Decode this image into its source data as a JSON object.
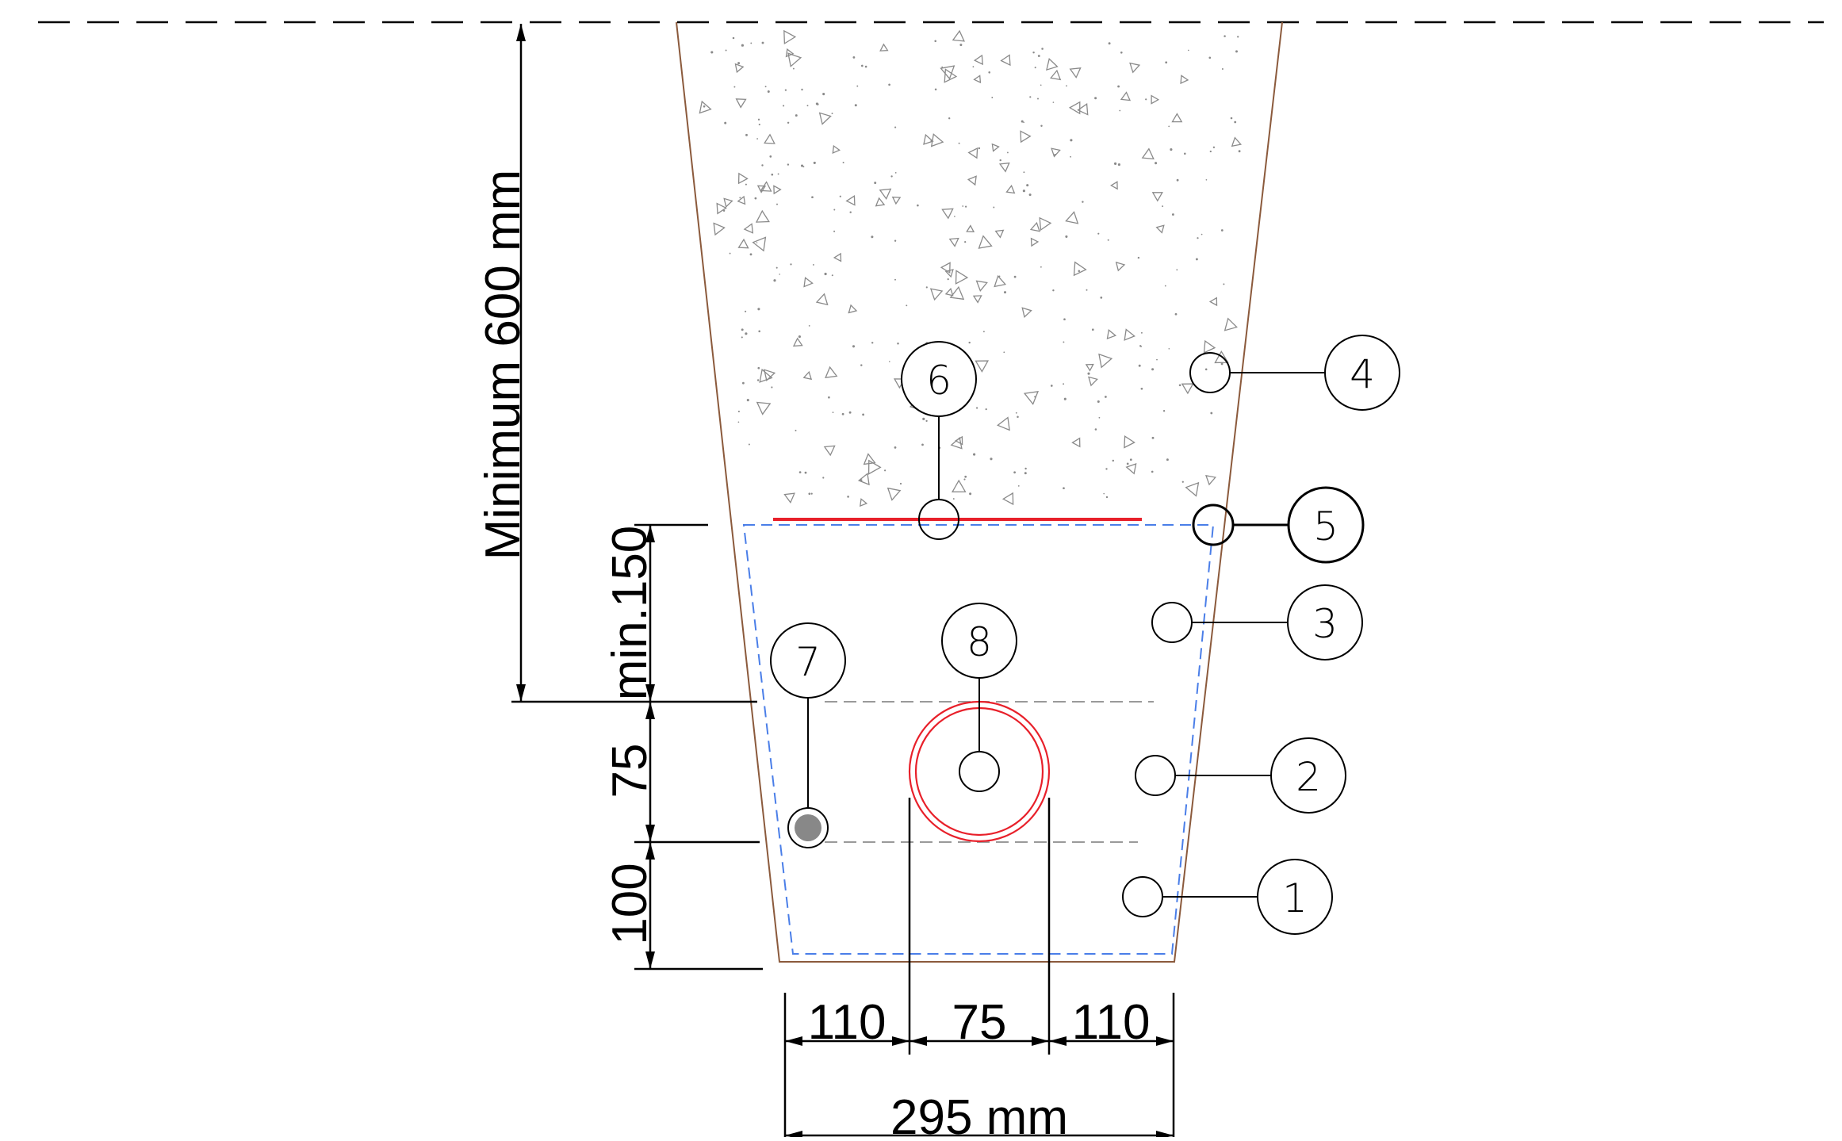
{
  "dimensions": {
    "vertical": {
      "minimum_cover": "Minimum 600 mm",
      "min_150": "min.150",
      "d75": "75",
      "d100": "100"
    },
    "horizontal": {
      "left": "110",
      "middle": "75",
      "right": "110",
      "total": "295 mm"
    }
  },
  "callouts": {
    "c1": "1",
    "c2": "2",
    "c3": "3",
    "c4": "4",
    "c5": "5",
    "c6": "6",
    "c7": "7",
    "c8": "8"
  },
  "colors": {
    "trench_outline": "#8b5a3c",
    "warning_tape": "#e8202a",
    "bedding_outline": "#4a7ee8",
    "pipe": "#e8202a",
    "dimension": "#000000",
    "guide_line": "#9a9a9a",
    "backfill_marks": "#8a8a8a",
    "cable_fill": "#888888"
  }
}
